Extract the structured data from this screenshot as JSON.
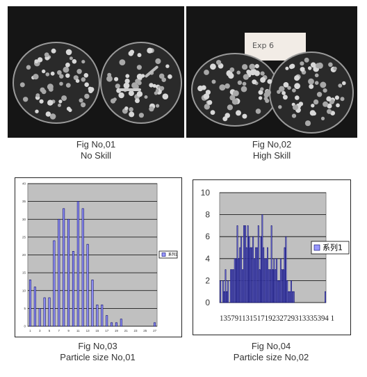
{
  "figures": {
    "fig1": {
      "number": "Fig No,01",
      "label": "No Skill"
    },
    "fig2": {
      "number": "Fig No,02",
      "label": "High Skill",
      "paper_label": "Exp 6"
    },
    "fig3": {
      "number": "Fig No,03",
      "label": "Particle size No,01"
    },
    "fig4": {
      "number": "Fig No,04",
      "label": "Particle size No,02"
    }
  },
  "colors": {
    "bar_fill": "#9999ff",
    "plot_background": "#c0c0c0",
    "photo_background": "#151515"
  },
  "chart_data": [
    {
      "type": "bar",
      "title": "",
      "legend": {
        "entries": [
          "系列1"
        ],
        "placement": "right"
      },
      "ylim": [
        0,
        40
      ],
      "yticks": [
        0,
        5,
        10,
        15,
        20,
        25,
        30,
        35,
        40
      ],
      "xtick_labels": [
        "1",
        "3",
        "5",
        "7",
        "9",
        "11",
        "13",
        "15",
        "17",
        "19",
        "21",
        "23",
        "25",
        "27"
      ],
      "categories": [
        1,
        2,
        3,
        4,
        5,
        6,
        7,
        8,
        9,
        10,
        11,
        12,
        13,
        14,
        15,
        16,
        17,
        18,
        19,
        20,
        21,
        22,
        23,
        24,
        25,
        26,
        27
      ],
      "series": [
        {
          "name": "系列1",
          "values": [
            13,
            11,
            5,
            8,
            8,
            24,
            30,
            33,
            30,
            21,
            35,
            33,
            23,
            13,
            6,
            6,
            3,
            1,
            1,
            2,
            0,
            0,
            0,
            0,
            0,
            0,
            1
          ]
        }
      ],
      "grid": true
    },
    {
      "type": "bar",
      "title": "",
      "legend": {
        "entries": [
          "系列1"
        ],
        "placement": "right"
      },
      "ylim": [
        0,
        10
      ],
      "yticks": [
        0,
        2,
        4,
        6,
        8,
        10
      ],
      "xtick_labels_printed": "13579113151719232729313335394 1",
      "categories": [
        1,
        2,
        3,
        4,
        5,
        6,
        7,
        8,
        9,
        10,
        11,
        12,
        13,
        14,
        15,
        16,
        17,
        18,
        19,
        20,
        21,
        22,
        23,
        24,
        25,
        26,
        27,
        28,
        29,
        30,
        31,
        32,
        33,
        34,
        35,
        36,
        37,
        38,
        39,
        40,
        41,
        42,
        43,
        44,
        45,
        46,
        47,
        48,
        49,
        50,
        51,
        52,
        53,
        54,
        55,
        56,
        57,
        58,
        59,
        60,
        61,
        62,
        63,
        64,
        65,
        66,
        67,
        68,
        69,
        70,
        71,
        72,
        73,
        74,
        75,
        76,
        77,
        78,
        79,
        80,
        81
      ],
      "series": [
        {
          "name": "系列1",
          "values": [
            2,
            0,
            2,
            1,
            3,
            1,
            2,
            0,
            3,
            3,
            3,
            4,
            4,
            7,
            4,
            5,
            6,
            3,
            7,
            7,
            5,
            7,
            6,
            5,
            5,
            6,
            4,
            5,
            5,
            7,
            3,
            6,
            8,
            5,
            4,
            4,
            5,
            3,
            3,
            7,
            3,
            4,
            3,
            4,
            2,
            2,
            4,
            3,
            3,
            5,
            6,
            2,
            1,
            1,
            2,
            1,
            1,
            0,
            0,
            0,
            0,
            0,
            0,
            0,
            0,
            0,
            0,
            0,
            0,
            0,
            0,
            0,
            0,
            0,
            0,
            0,
            0,
            0,
            0,
            0,
            1
          ]
        }
      ],
      "grid": true
    }
  ]
}
